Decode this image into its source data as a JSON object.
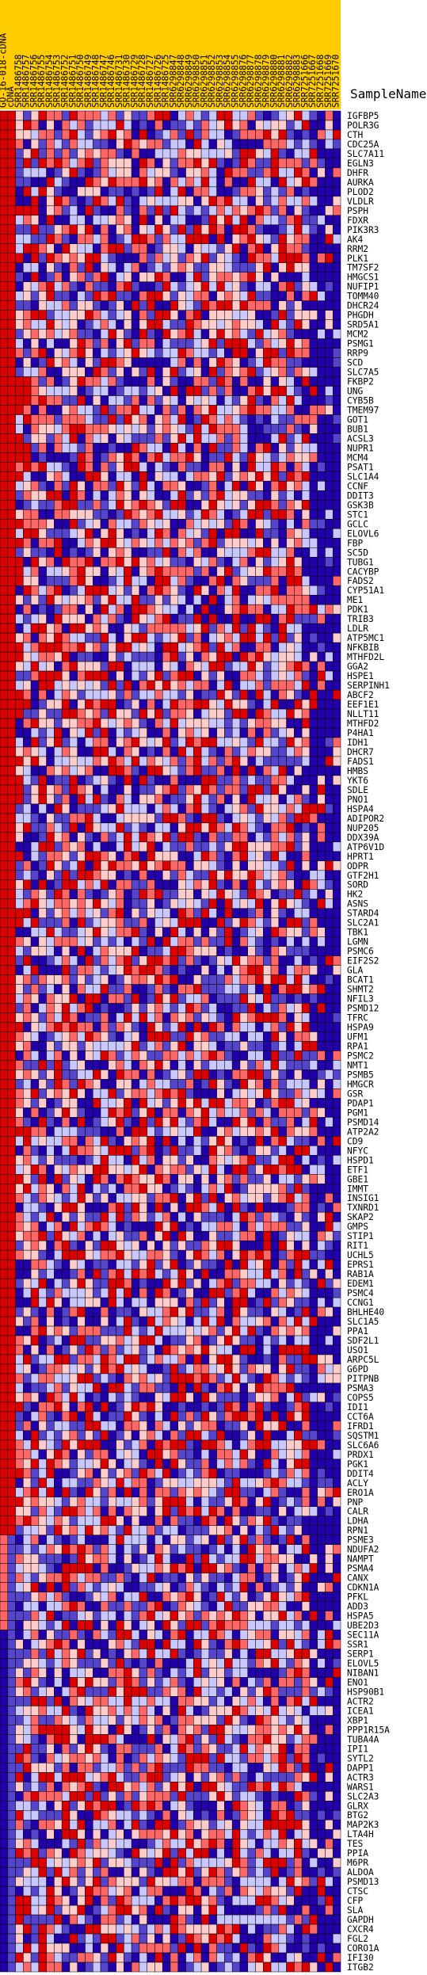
{
  "chart_data": {
    "type": "heatmap",
    "row_header": "SampleName",
    "columns": [
      "GO-16-018-cDNA",
      "cDNA",
      "SRR1486758",
      "SRR1486757",
      "SRR1486756",
      "SRR1486755",
      "SRR1486754",
      "SRR1486753",
      "SRR1486752",
      "SRR1486751",
      "SRR1486750",
      "SRR1486749",
      "SRR1486748",
      "SRR1486747",
      "SRR1486746",
      "SRR1486731",
      "SRR1486730",
      "SRR1486729",
      "SRR1486728",
      "SRR1486727",
      "SRR1486726",
      "SRR1486725",
      "SRR6298847",
      "SRR6298848",
      "SRR6298849",
      "SRR6298850",
      "SRR6298851",
      "SRR6298852",
      "SRR6298853",
      "SRR6298854",
      "SRR6298855",
      "SRR6298876",
      "SRR6298877",
      "SRR6298878",
      "SRR6298879",
      "SRR6298880",
      "SRR6298881",
      "SRR6298882",
      "SRR6298883",
      "SRR7251666",
      "SRR7251667",
      "SRR7251668",
      "SRR7251669",
      "SRR7251670"
    ],
    "column_header_color": "#ffcc00",
    "rows": [
      "IGFBP5",
      "POLR3G",
      "CTH",
      "CDC25A",
      "SLC7A11",
      "EGLN3",
      "DHFR",
      "AURKA",
      "PLOD2",
      "VLDLR",
      "PSPH",
      "FDXR",
      "PIK3R3",
      "AK4",
      "RRM2",
      "PLK1",
      "TM7SF2",
      "HMGCS1",
      "NUFIP1",
      "TOMM40",
      "DHCR24",
      "PHGDH",
      "SRD5A1",
      "MCM2",
      "PSMG1",
      "RRP9",
      "SCD",
      "SLC7A5",
      "FKBP2",
      "UNG",
      "CYB5B",
      "TMEM97",
      "GOT1",
      "BUB1",
      "ACSL3",
      "NUPR1",
      "MCM4",
      "PSAT1",
      "SLC1A4",
      "CCNF",
      "DDIT3",
      "GSK3B",
      "STC1",
      "GCLC",
      "ELOVL6",
      "FBP",
      "SC5D",
      "TUBG1",
      "CACYBP",
      "FADS2",
      "CYP51A1",
      "ME1",
      "PDK1",
      "TRIB3",
      "LDLR",
      "ATP5MC1",
      "NFKBIB",
      "MTHFD2L",
      "GGA2",
      "HSPE1",
      "SERPINH1",
      "ABCF2",
      "EEF1E1",
      "NLLT11",
      "MTHFD2",
      "P4HA1",
      "IDH1",
      "DHCR7",
      "FADS1",
      "HMBS",
      "YKT6",
      "SDLE",
      "PNO1",
      "HSPA4",
      "ADIPOR2",
      "NUP205",
      "DDX39A",
      "ATP6V1D",
      "HPRT1",
      "ODPR",
      "GTF2H1",
      "SORD",
      "HK2",
      "ASNS",
      "STARD4",
      "SLC2A1",
      "TBK1",
      "LGMN",
      "PSMC6",
      "EIF2S2",
      "GLA",
      "BCAT1",
      "SHMT2",
      "NFIL3",
      "PSMD12",
      "TFRC",
      "HSPA9",
      "UFM1",
      "RPA1",
      "PSMC2",
      "NMT1",
      "PSMB5",
      "HMGCR",
      "GSR",
      "PDAP1",
      "PGM1",
      "PSMD14",
      "ATP2A2",
      "CD9",
      "NFYC",
      "HSPD1",
      "ETF1",
      "GBE1",
      "IMMT",
      "INSIG1",
      "TXNRD1",
      "SKAP2",
      "GMPS",
      "STIP1",
      "RIT1",
      "UCHL5",
      "EPRS1",
      "RAB1A",
      "EDEM1",
      "PSMC4",
      "CCNG1",
      "BHLHE40",
      "SLC1A5",
      "PPA1",
      "SDF2L1",
      "USO1",
      "ARPC5L",
      "G6PD",
      "PITPNB",
      "PSMA3",
      "COPS5",
      "IDI1",
      "CCT6A",
      "IFRD1",
      "SQSTM1",
      "SLC6A6",
      "PRDX1",
      "PGK1",
      "DDIT4",
      "ACLY",
      "ERO1A",
      "PNP",
      "CALR",
      "LDHA",
      "RPN1",
      "PSME3",
      "NDUFA2",
      "NAMPT",
      "PSMA4",
      "CANX",
      "CDKN1A",
      "PFKL",
      "ADD3",
      "HSPA5",
      "UBE2D3",
      "SEC11A",
      "SSR1",
      "SERP1",
      "ELOVL5",
      "NIBAN1",
      "ENO1",
      "HSP90B1",
      "ACTR2",
      "ICEA1",
      "XBP1",
      "PPP1R15A",
      "TUBA4A",
      "IPI1",
      "SYTL2",
      "DAPP1",
      "ACTR3",
      "WARS1",
      "SLC2A3",
      "GLRX",
      "BTG2",
      "MAP2K3",
      "LTA4H",
      "TES",
      "PPIA",
      "M6PR",
      "ALDOA",
      "PSMD13",
      "CTSC",
      "CFP",
      "SLA",
      "GAPDH",
      "CXCR4",
      "FGL2",
      "CORO1A",
      "IFI30",
      "ITGB2"
    ],
    "color_scale": {
      "low": "#2200aa",
      "mid_low": "#c8c8ff",
      "mid_high": "#ff9999",
      "high": "#dd0000"
    },
    "values_note_levels": [
      -3,
      -2,
      -1,
      1,
      2,
      3
    ]
  }
}
